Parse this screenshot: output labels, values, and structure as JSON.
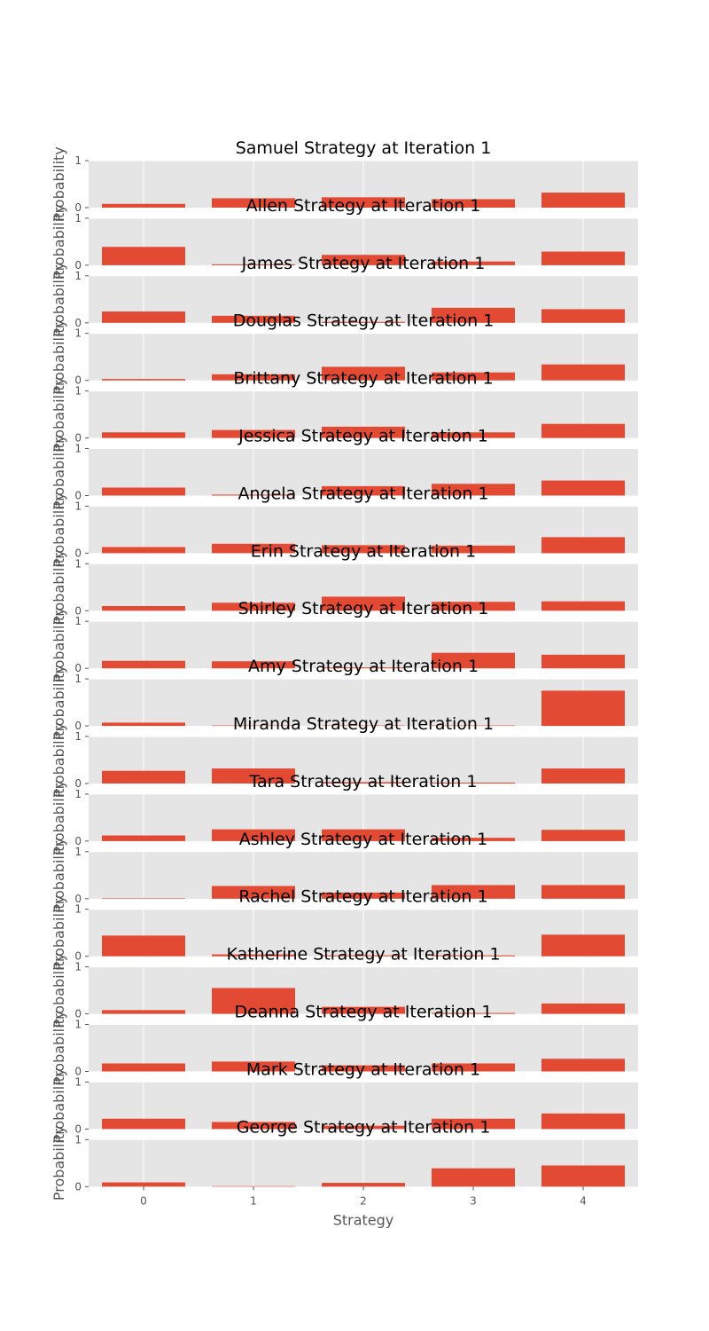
{
  "chart_data": {
    "type": "bar",
    "categories": [
      "0",
      "1",
      "2",
      "3",
      "4"
    ],
    "y_ticks": [
      "0",
      "1"
    ],
    "ylim": [
      0,
      1
    ],
    "xlabel": "Strategy",
    "ylabel": "Probability",
    "grid": true,
    "bar_color": "#e24a33",
    "panel_color": "#e5e5e5",
    "panels": [
      {
        "title": "Samuel Strategy at Iteration 1",
        "values": [
          0.08,
          0.2,
          0.22,
          0.18,
          0.32
        ]
      },
      {
        "title": "Allen Strategy at Iteration 1",
        "values": [
          0.39,
          0.02,
          0.22,
          0.08,
          0.29
        ]
      },
      {
        "title": "James Strategy at Iteration 1",
        "values": [
          0.24,
          0.15,
          0.02,
          0.32,
          0.29
        ]
      },
      {
        "title": "Douglas Strategy at Iteration 1",
        "values": [
          0.03,
          0.13,
          0.29,
          0.17,
          0.34
        ]
      },
      {
        "title": "Brittany Strategy at Iteration 1",
        "values": [
          0.12,
          0.17,
          0.24,
          0.12,
          0.3
        ]
      },
      {
        "title": "Jessica Strategy at Iteration 1",
        "values": [
          0.17,
          0.02,
          0.2,
          0.25,
          0.32
        ]
      },
      {
        "title": "Angela Strategy at Iteration 1",
        "values": [
          0.13,
          0.2,
          0.17,
          0.16,
          0.34
        ]
      },
      {
        "title": "Erin Strategy at Iteration 1",
        "values": [
          0.1,
          0.17,
          0.3,
          0.19,
          0.2
        ]
      },
      {
        "title": "Shirley Strategy at Iteration 1",
        "values": [
          0.16,
          0.15,
          0.02,
          0.33,
          0.29
        ]
      },
      {
        "title": "Amy Strategy at Iteration 1",
        "values": [
          0.07,
          0.01,
          0.01,
          0.01,
          0.75
        ]
      },
      {
        "title": "Miranda Strategy at Iteration 1",
        "values": [
          0.27,
          0.32,
          0.03,
          0.02,
          0.32
        ]
      },
      {
        "title": "Tara Strategy at Iteration 1",
        "values": [
          0.12,
          0.25,
          0.25,
          0.07,
          0.24
        ]
      },
      {
        "title": "Ashley Strategy at Iteration 1",
        "values": [
          0.01,
          0.27,
          0.13,
          0.29,
          0.29
        ]
      },
      {
        "title": "Rachel Strategy at Iteration 1",
        "values": [
          0.44,
          0.04,
          0.02,
          0.02,
          0.46
        ]
      },
      {
        "title": "Katherine Strategy at Iteration 1",
        "values": [
          0.08,
          0.55,
          0.15,
          0.02,
          0.22
        ]
      },
      {
        "title": "Deanna Strategy at Iteration 1",
        "values": [
          0.17,
          0.21,
          0.13,
          0.17,
          0.27
        ]
      },
      {
        "title": "Mark Strategy at Iteration 1",
        "values": [
          0.22,
          0.15,
          0.07,
          0.22,
          0.33
        ]
      },
      {
        "title": "George Strategy at Iteration 1",
        "values": [
          0.09,
          0.01,
          0.08,
          0.39,
          0.45
        ]
      }
    ]
  }
}
